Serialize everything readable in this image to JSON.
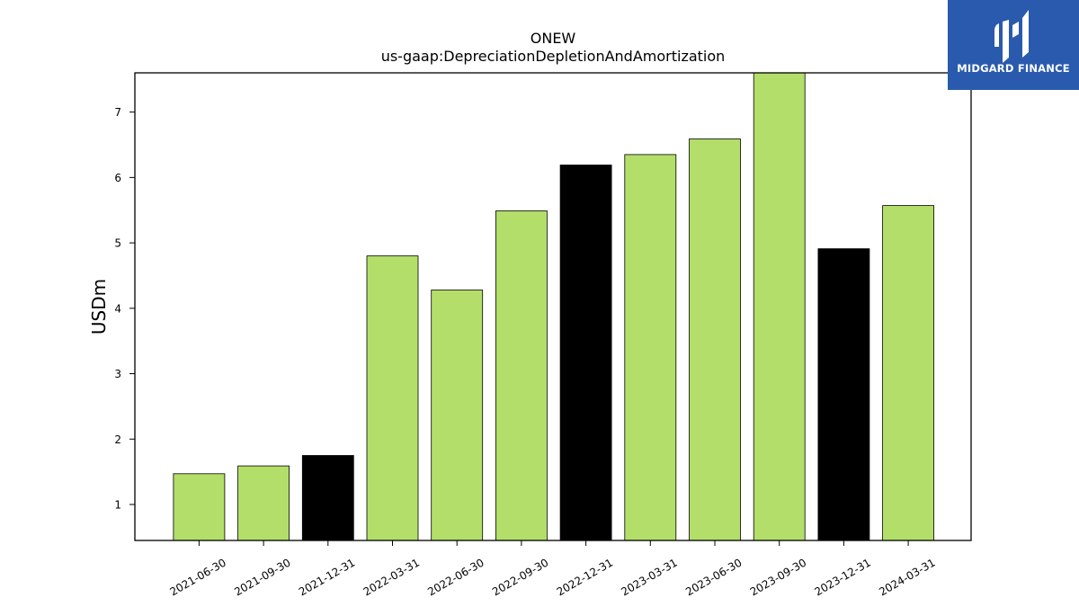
{
  "chart_data": {
    "type": "bar",
    "title": "ONEW",
    "subtitle": "us-gaap:DepreciationDepletionAndAmortization",
    "ylabel": "USDm",
    "xlabel": "",
    "categories": [
      "2021-06-30",
      "2021-09-30",
      "2021-12-31",
      "2022-03-31",
      "2022-06-30",
      "2022-09-30",
      "2022-12-31",
      "2023-03-31",
      "2023-06-30",
      "2023-09-30",
      "2023-12-31",
      "2024-03-31"
    ],
    "values": [
      1.47,
      1.59,
      1.75,
      4.8,
      4.28,
      5.49,
      6.19,
      6.35,
      6.59,
      7.62,
      4.91,
      5.57
    ],
    "bar_colors": [
      "#b3de69",
      "#b3de69",
      "#000000",
      "#b3de69",
      "#b3de69",
      "#b3de69",
      "#000000",
      "#b3de69",
      "#b3de69",
      "#b3de69",
      "#000000",
      "#b3de69"
    ],
    "yticks": [
      1,
      2,
      3,
      4,
      5,
      6,
      7
    ],
    "ylim": [
      0.45,
      7.6
    ],
    "grid": false,
    "legend": "none"
  },
  "logo": {
    "text": "MIDGARD FINANCE",
    "background": "#2a5aad",
    "foreground": "#ffffff",
    "icon": "midgard-logo-icon"
  }
}
